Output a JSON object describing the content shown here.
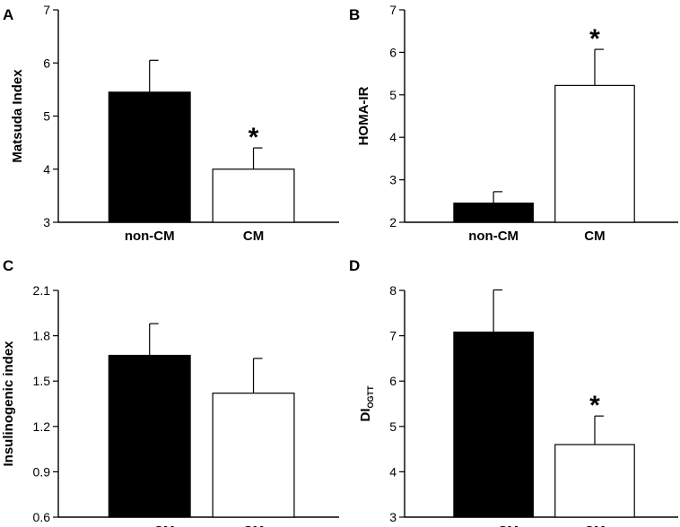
{
  "chart_data": [
    {
      "type": "bar",
      "panel_label": "A",
      "ylabel": "Matsuda Index",
      "ylim": [
        3,
        7
      ],
      "yticks": [
        "3",
        "4",
        "5",
        "6",
        "7"
      ],
      "categories": [
        "non-CM",
        "CM"
      ],
      "values": [
        5.45,
        4.0
      ],
      "error_upper": [
        0.6,
        0.4
      ],
      "bar_fill": [
        "#000000",
        "#ffffff"
      ],
      "significance": [
        "",
        "*"
      ]
    },
    {
      "type": "bar",
      "panel_label": "B",
      "ylabel": "HOMA-IR",
      "ylim": [
        2,
        7
      ],
      "yticks": [
        "2",
        "3",
        "4",
        "5",
        "6",
        "7"
      ],
      "categories": [
        "non-CM",
        "CM"
      ],
      "values": [
        2.45,
        5.22
      ],
      "error_upper": [
        0.27,
        0.85
      ],
      "bar_fill": [
        "#000000",
        "#ffffff"
      ],
      "significance": [
        "",
        "*"
      ]
    },
    {
      "type": "bar",
      "panel_label": "C",
      "ylabel": "Insulinogenic index",
      "ylim": [
        0.6,
        2.1
      ],
      "yticks": [
        "0.6",
        "0.9",
        "1.2",
        "1.5",
        "1.8",
        "2.1"
      ],
      "categories": [
        "non-CM",
        "CM"
      ],
      "values": [
        1.67,
        1.42
      ],
      "error_upper": [
        0.21,
        0.23
      ],
      "bar_fill": [
        "#000000",
        "#ffffff"
      ],
      "significance": [
        "",
        ""
      ]
    },
    {
      "type": "bar",
      "panel_label": "D",
      "ylabel": "DI",
      "ylabel_sub": "OGTT",
      "ylim": [
        3,
        8
      ],
      "yticks": [
        "3",
        "4",
        "5",
        "6",
        "7",
        "8"
      ],
      "categories": [
        "non-CM",
        "CM"
      ],
      "values": [
        7.08,
        4.6
      ],
      "error_upper": [
        0.93,
        0.63
      ],
      "bar_fill": [
        "#000000",
        "#ffffff"
      ],
      "significance": [
        "",
        "*"
      ]
    }
  ]
}
